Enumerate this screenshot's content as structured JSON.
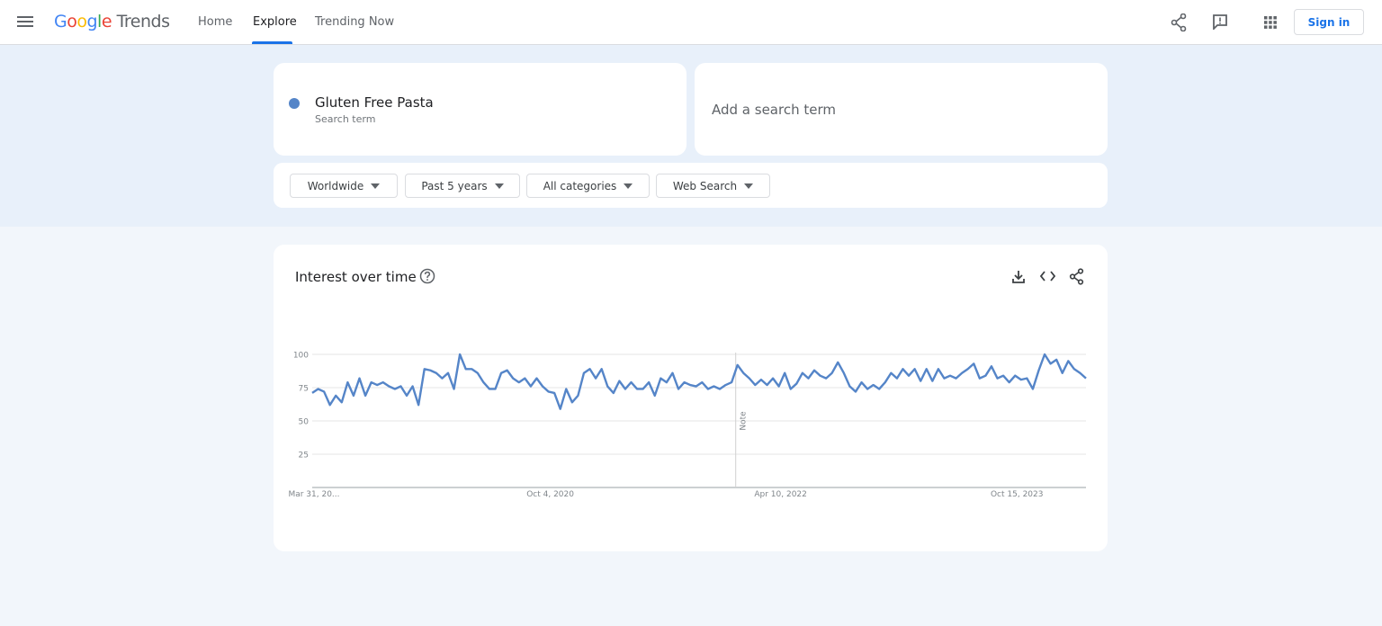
{
  "header": {
    "logo": {
      "brand": "Google",
      "product": "Trends"
    },
    "nav": [
      "Home",
      "Explore",
      "Trending Now"
    ],
    "active_nav": 1,
    "sign_in": "Sign in"
  },
  "search": {
    "term": "Gluten Free Pasta",
    "term_subtitle": "Search term",
    "add_term": "Add a search term"
  },
  "filters": [
    "Worldwide",
    "Past 5 years",
    "All categories",
    "Web Search"
  ],
  "chart_data": {
    "type": "line",
    "title": "Interest over time",
    "note": "Note",
    "color": "#5585c8",
    "categories": [
      "Mar 31, 20...",
      null,
      null,
      null,
      null,
      null,
      null,
      null,
      null,
      null,
      null,
      null,
      null,
      null,
      null,
      null,
      null,
      null,
      null,
      null,
      null,
      null,
      null,
      null,
      null,
      null,
      null,
      null,
      null,
      null,
      null,
      null,
      null,
      null,
      null,
      null,
      null,
      null,
      null,
      null,
      "Oct 4, 2020",
      null,
      null,
      null,
      null,
      null,
      null,
      null,
      null,
      null,
      null,
      null,
      null,
      null,
      null,
      null,
      null,
      null,
      null,
      null,
      null,
      null,
      null,
      null,
      null,
      null,
      null,
      null,
      null,
      null,
      null,
      null,
      null,
      null,
      null,
      null,
      null,
      null,
      null,
      "Apr 10, 2022",
      null,
      null,
      null,
      null,
      null,
      null,
      null,
      null,
      null,
      null,
      null,
      null,
      null,
      null,
      null,
      null,
      null,
      null,
      null,
      null,
      null,
      null,
      null,
      null,
      null,
      null,
      null,
      null,
      null,
      null,
      null,
      null,
      null,
      null,
      null,
      null,
      null,
      null,
      null,
      "Oct 15, 2023",
      null,
      null,
      null,
      null,
      null,
      null,
      null,
      null,
      null,
      null,
      null,
      null
    ],
    "values": [
      71,
      74,
      72,
      62,
      69,
      64,
      79,
      69,
      82,
      69,
      79,
      77,
      79,
      76,
      74,
      76,
      69,
      76,
      62,
      89,
      88,
      86,
      82,
      86,
      74,
      100,
      89,
      89,
      86,
      79,
      74,
      74,
      86,
      88,
      82,
      79,
      82,
      76,
      82,
      76,
      72,
      71,
      59,
      74,
      64,
      69,
      86,
      89,
      82,
      89,
      76,
      71,
      80,
      74,
      79,
      74,
      74,
      79,
      69,
      82,
      79,
      86,
      74,
      79,
      77,
      76,
      79,
      74,
      76,
      74,
      77,
      79,
      92,
      86,
      82,
      77,
      81,
      77,
      82,
      76,
      86,
      74,
      78,
      86,
      82,
      88,
      84,
      82,
      86,
      94,
      86,
      76,
      72,
      79,
      74,
      77,
      74,
      79,
      86,
      82,
      89,
      84,
      89,
      80,
      89,
      80,
      89,
      82,
      84,
      82,
      86,
      89,
      93,
      82,
      84,
      91,
      82,
      84,
      79,
      84,
      81,
      82,
      74,
      88,
      100,
      93,
      96,
      86,
      95,
      89,
      86,
      82
    ],
    "ylim": [
      0,
      100
    ],
    "yticks": [
      25,
      50,
      75,
      100
    ],
    "grid": true
  }
}
